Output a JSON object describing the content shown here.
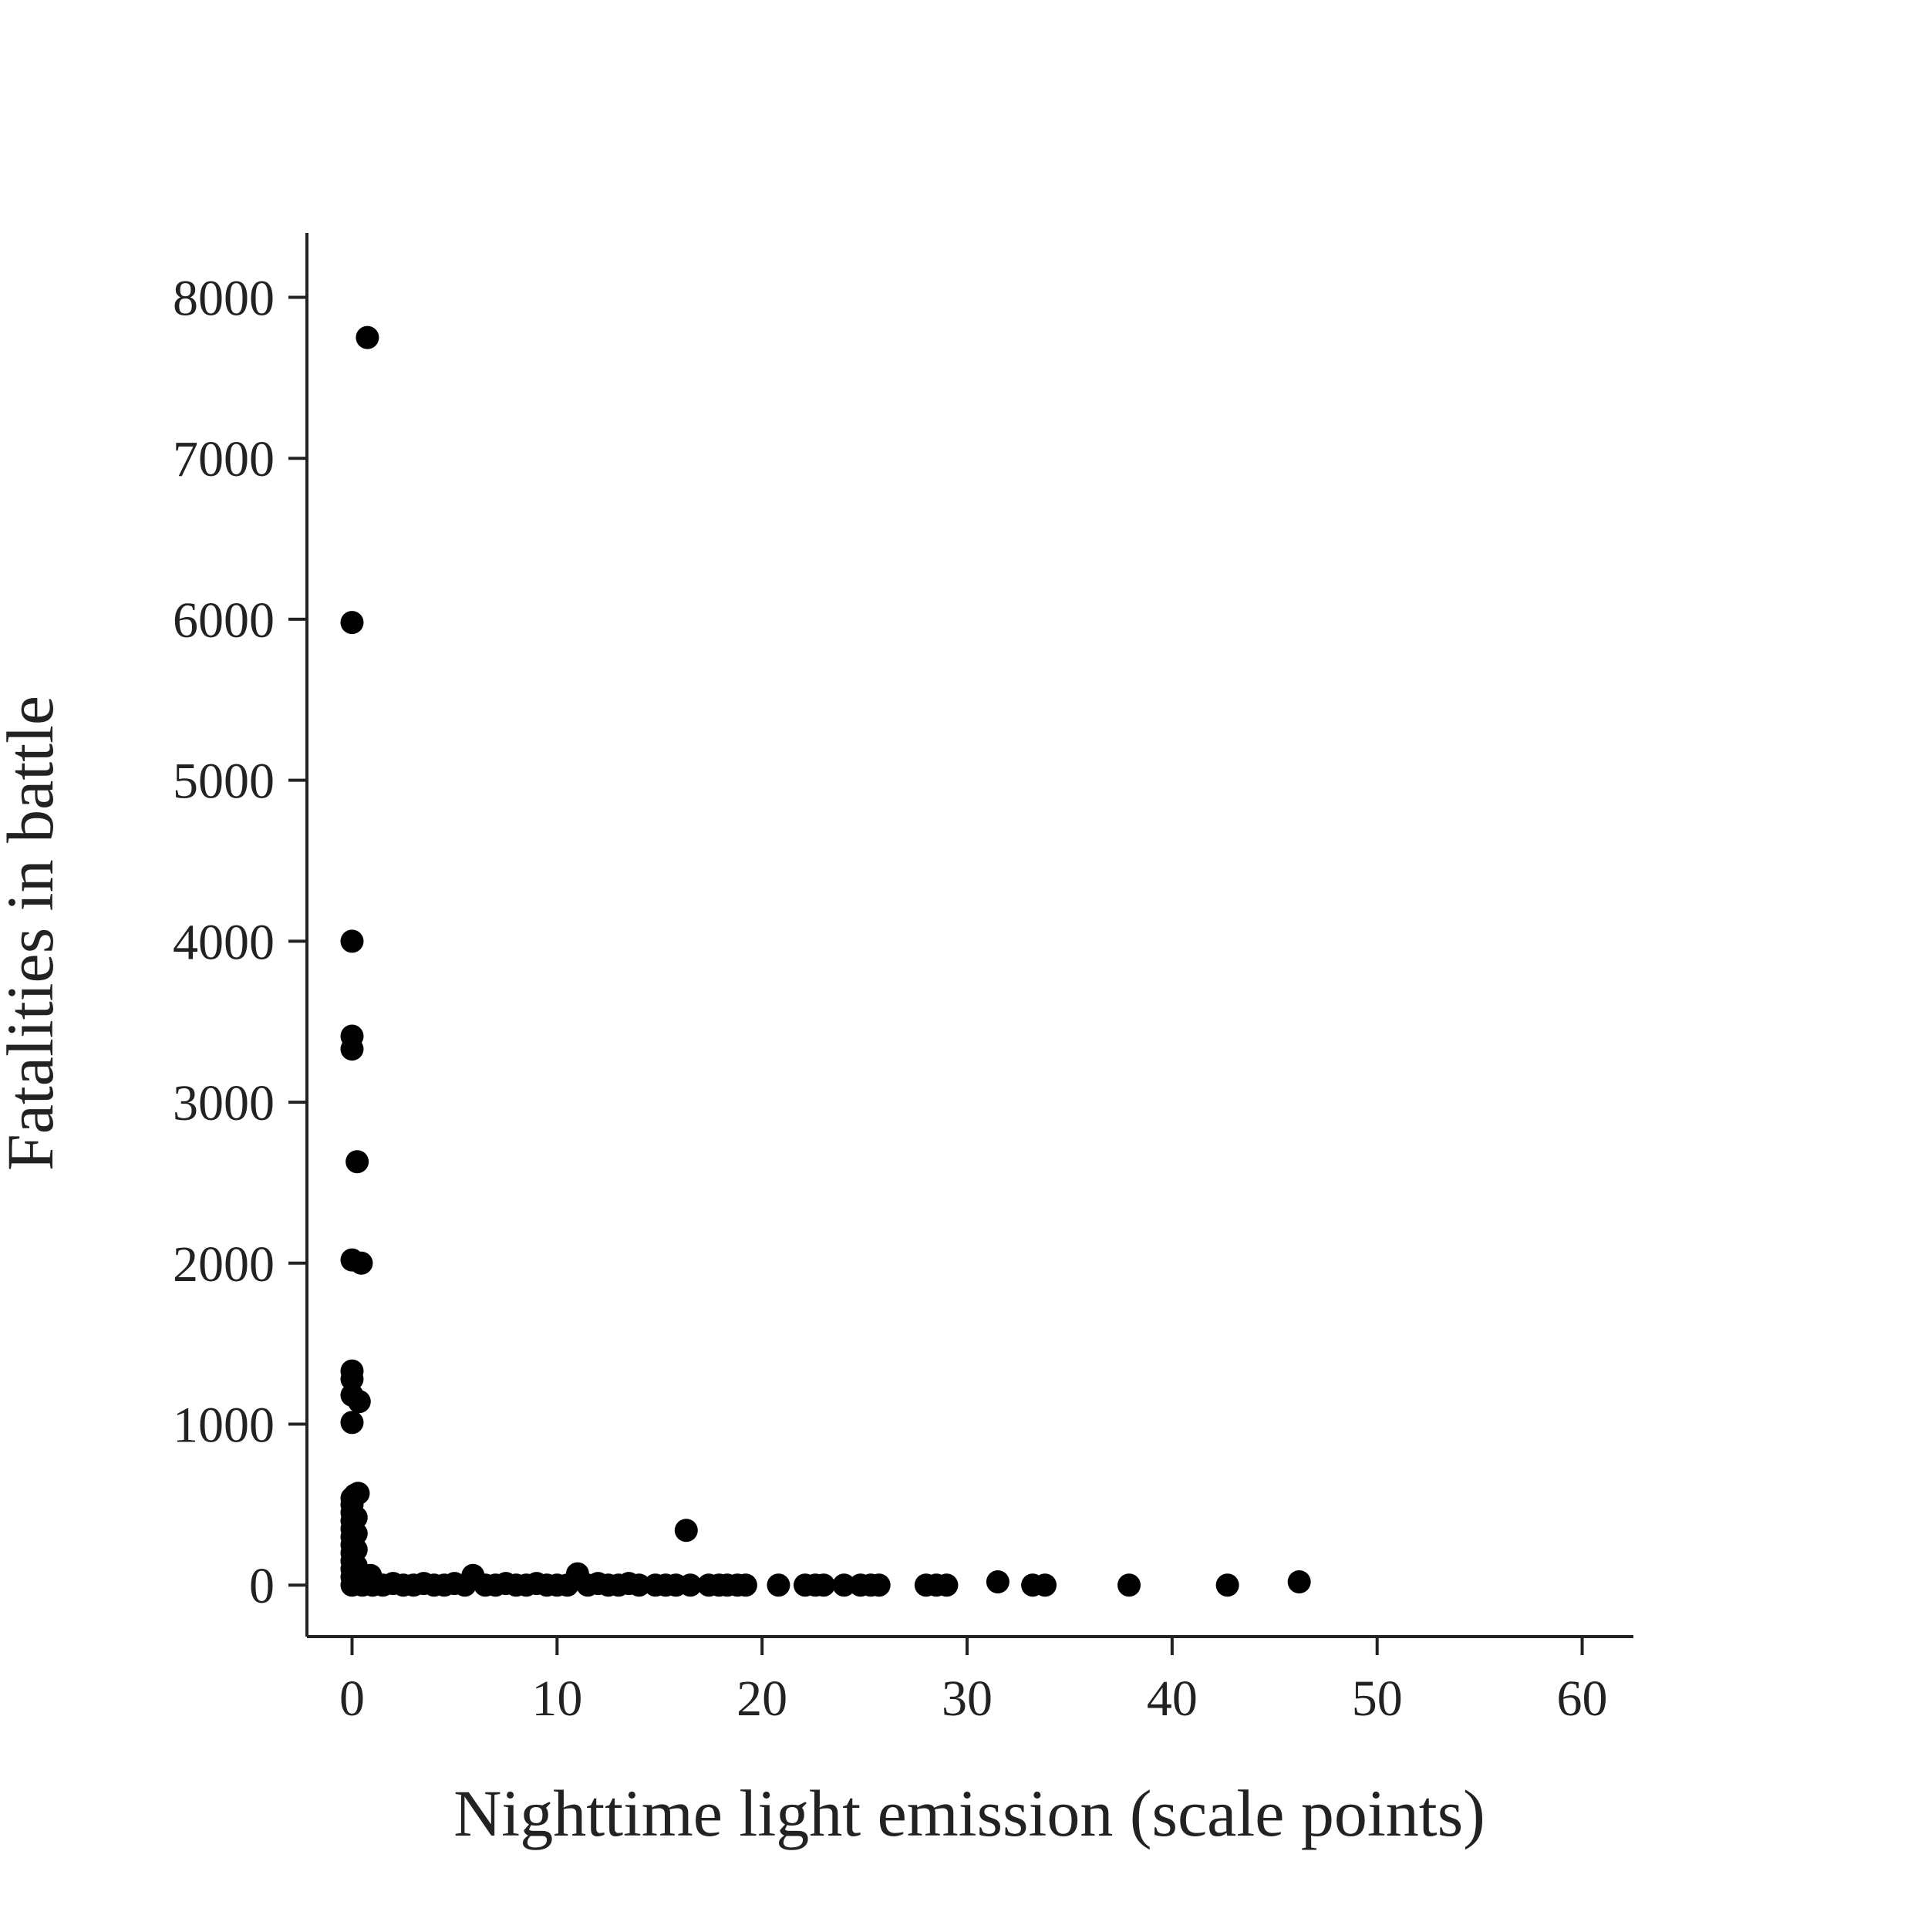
{
  "chart_data": {
    "type": "scatter",
    "title": "",
    "xlabel": "Nighttime light emission (scale points)",
    "ylabel": "Fatalities in battle",
    "xlim": [
      -2.2,
      62.5
    ],
    "ylim": [
      -320,
      8400
    ],
    "xticks": [
      0,
      10,
      20,
      30,
      40,
      50,
      60
    ],
    "yticks": [
      0,
      1000,
      2000,
      3000,
      4000,
      5000,
      6000,
      7000,
      8000
    ],
    "grid": false,
    "legend": "none",
    "point_color": "#000000",
    "points": [
      [
        0.75,
        7750
      ],
      [
        0.0,
        5980
      ],
      [
        0.0,
        4000
      ],
      [
        0.0,
        3410
      ],
      [
        0.0,
        3330
      ],
      [
        0.25,
        2630
      ],
      [
        0.0,
        2020
      ],
      [
        0.45,
        2000
      ],
      [
        0.0,
        1330
      ],
      [
        0.0,
        1280
      ],
      [
        0.0,
        1180
      ],
      [
        0.35,
        1140
      ],
      [
        0.0,
        1010
      ],
      [
        0.3,
        570
      ],
      [
        0.15,
        560
      ],
      [
        0.0,
        540
      ],
      [
        0.0,
        500
      ],
      [
        0.0,
        450
      ],
      [
        0.0,
        400
      ],
      [
        0.0,
        350
      ],
      [
        0.0,
        300
      ],
      [
        0.0,
        250
      ],
      [
        0.0,
        200
      ],
      [
        0.0,
        150
      ],
      [
        0.0,
        100
      ],
      [
        0.0,
        50
      ],
      [
        0.0,
        0
      ],
      [
        0.2,
        420
      ],
      [
        0.2,
        320
      ],
      [
        0.2,
        220
      ],
      [
        0.2,
        120
      ],
      [
        0.2,
        30
      ],
      [
        0.5,
        0
      ],
      [
        0.9,
        60
      ],
      [
        1.0,
        0
      ],
      [
        1.5,
        0
      ],
      [
        2.0,
        10
      ],
      [
        2.5,
        0
      ],
      [
        3.0,
        0
      ],
      [
        3.5,
        10
      ],
      [
        4.0,
        0
      ],
      [
        4.5,
        0
      ],
      [
        5.0,
        10
      ],
      [
        5.5,
        0
      ],
      [
        5.9,
        60
      ],
      [
        6.5,
        0
      ],
      [
        7.0,
        0
      ],
      [
        7.5,
        10
      ],
      [
        8.0,
        0
      ],
      [
        8.5,
        0
      ],
      [
        9.0,
        10
      ],
      [
        9.5,
        0
      ],
      [
        10.0,
        0
      ],
      [
        10.5,
        0
      ],
      [
        11.0,
        70
      ],
      [
        11.5,
        0
      ],
      [
        12.0,
        10
      ],
      [
        12.5,
        0
      ],
      [
        13.0,
        0
      ],
      [
        13.5,
        10
      ],
      [
        14.0,
        0
      ],
      [
        14.8,
        0
      ],
      [
        15.3,
        0
      ],
      [
        15.8,
        0
      ],
      [
        16.3,
        340
      ],
      [
        16.5,
        0
      ],
      [
        17.4,
        0
      ],
      [
        17.9,
        0
      ],
      [
        18.3,
        0
      ],
      [
        18.8,
        0
      ],
      [
        19.2,
        0
      ],
      [
        20.8,
        0
      ],
      [
        22.1,
        0
      ],
      [
        22.6,
        0
      ],
      [
        23.0,
        0
      ],
      [
        24.0,
        0
      ],
      [
        24.8,
        0
      ],
      [
        25.3,
        0
      ],
      [
        25.7,
        0
      ],
      [
        28.0,
        0
      ],
      [
        28.5,
        0
      ],
      [
        29.0,
        0
      ],
      [
        31.5,
        20
      ],
      [
        33.2,
        0
      ],
      [
        33.8,
        0
      ],
      [
        37.9,
        0
      ],
      [
        42.7,
        0
      ],
      [
        46.2,
        20
      ]
    ]
  }
}
